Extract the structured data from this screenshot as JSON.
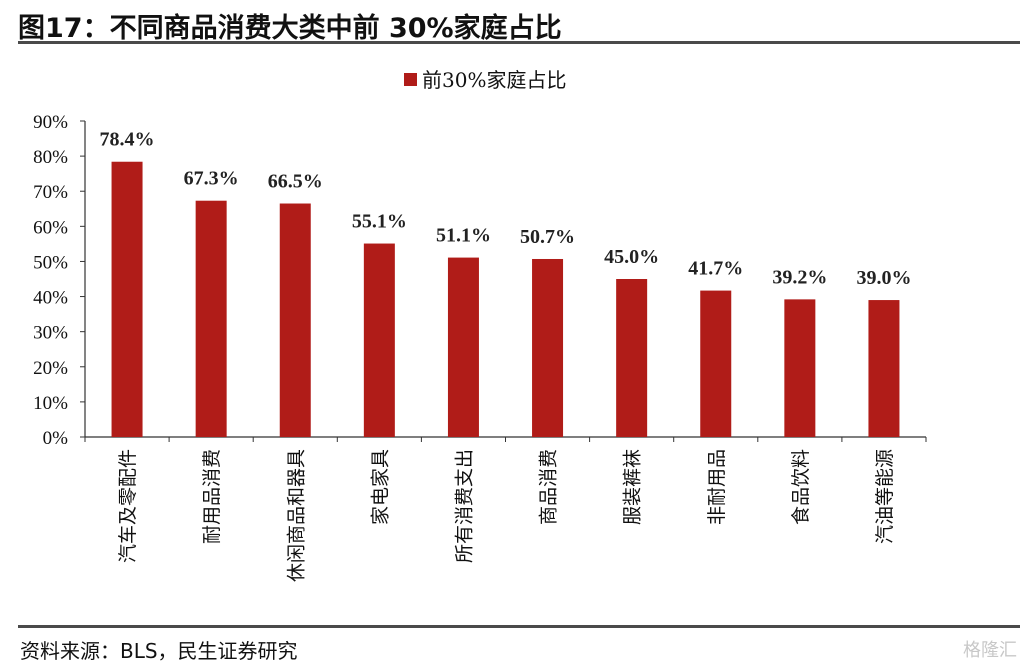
{
  "figure": {
    "title": "图17：不同商品消费大类中前 30%家庭占比",
    "source": "资料来源：BLS，民生证券研究",
    "watermark": "格隆汇"
  },
  "colors": {
    "bar": "#B01C18",
    "axis": "#333333",
    "rule": "#4a4a4a"
  },
  "chart_data": {
    "type": "bar",
    "title": "",
    "xlabel": "",
    "ylabel": "",
    "categories": [
      "汽车及零配件",
      "耐用品消费",
      "休闲商品和器具",
      "家电家具",
      "所有消费支出",
      "商品消费",
      "服装裤袜",
      "非耐用品",
      "食品饮料",
      "汽油等能源"
    ],
    "series": [
      {
        "name": "前30%家庭占比",
        "values": [
          78.4,
          67.3,
          66.5,
          55.1,
          51.1,
          50.7,
          45.0,
          41.7,
          39.2,
          39.0
        ]
      }
    ],
    "data_labels": [
      "78.4%",
      "67.3%",
      "66.5%",
      "55.1%",
      "51.1%",
      "50.7%",
      "45.0%",
      "41.7%",
      "39.2%",
      "39.0%"
    ],
    "ylim": [
      0,
      90
    ],
    "yticks": [
      "0%",
      "10%",
      "20%",
      "30%",
      "40%",
      "50%",
      "60%",
      "70%",
      "80%",
      "90%"
    ],
    "legend_position": "top-center",
    "grid": false
  }
}
